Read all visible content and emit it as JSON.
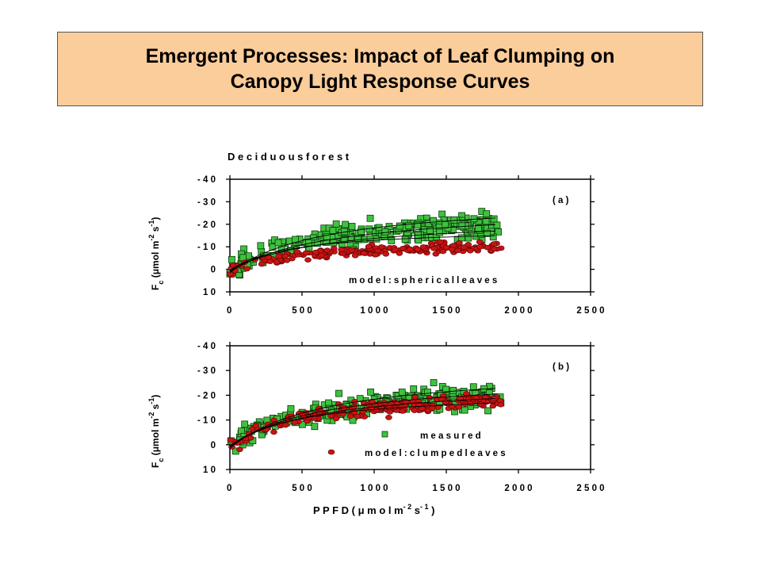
{
  "slide": {
    "title_line1": "Emergent Processes: Impact of Leaf Clumping on",
    "title_line2": "Canopy Light Response Curves"
  },
  "figure": {
    "heading": "D e c i d u o u s   f o r e s t",
    "xlabel_text": "P P F D     ( μ m o l  m",
    "xlabel_sup1": "- 2",
    "xlabel_mid": "  s",
    "xlabel_sup2": "- 1",
    "xlabel_end": " )"
  },
  "colors": {
    "measured_fill": "#3fc23f",
    "model_fill": "#c81414",
    "title_bg": "#fbcd9a"
  },
  "chart_data": [
    {
      "type": "scatter",
      "panel_label": "( a )",
      "annotation": "m o d e l :  s p h e r i c a l  l e a v e s",
      "ylabel": "F",
      "ylabel_sub": "c",
      "ylabel_units": "(μmol m",
      "ylabel_sup1": "-2",
      "ylabel_mid": " s",
      "ylabel_sup2": "-1",
      "ylabel_end": ")",
      "xlim": [
        0,
        2500
      ],
      "ylim": [
        10,
        -40
      ],
      "xticks": [
        0,
        500,
        1000,
        1500,
        2000,
        2500
      ],
      "xtick_labels": [
        "0",
        "5 0 0",
        "1 0 0 0",
        "1 5 0 0",
        "2 0 0 0",
        "2 5 0 0"
      ],
      "yticks": [
        -40,
        -30,
        -20,
        -10,
        0,
        10
      ],
      "ytick_labels": [
        "- 4 0",
        "- 3 0",
        "- 2 0",
        "- 1 0",
        "0",
        "1 0"
      ],
      "series": [
        {
          "marker": "square",
          "color": "#3fc23f",
          "model": "a",
          "scale": 0.95,
          "noise": 3.4,
          "n": 240
        },
        {
          "marker": "circle",
          "color": "#c81414",
          "model": "b",
          "scale": 0.7,
          "noise": 1.6,
          "n": 200
        }
      ],
      "curves": [
        {
          "a": 0.05,
          "pmax": 33,
          "r": -1.5,
          "xmax": 1850
        },
        {
          "a": 0.04,
          "pmax": 29,
          "r": -1.0,
          "xmax": 1850
        },
        {
          "a": 0.035,
          "pmax": 24,
          "r": -0.5,
          "xmax": 1850
        },
        {
          "a": 0.045,
          "pmax": 19,
          "r": -0.5,
          "xmax": 1850
        }
      ],
      "model_a": {
        "a": 0.05,
        "pmax": 30,
        "r": -1.5
      },
      "model_b": {
        "a": 0.04,
        "pmax": 18,
        "r": -0.5
      }
    },
    {
      "type": "scatter",
      "panel_label": "( b )",
      "legend": [
        {
          "label": "m e a s u r e d",
          "marker": "square",
          "color": "#3fc23f"
        },
        {
          "label": "m o d e l :  c l u m p e d  l e a v e s",
          "marker": "circle",
          "color": "#c81414"
        }
      ],
      "ylabel": "F",
      "ylabel_sub": "c",
      "ylabel_units": "(μmol m",
      "ylabel_sup1": "-2",
      "ylabel_mid": " s",
      "ylabel_sup2": "-1",
      "ylabel_end": ")",
      "xlim": [
        0,
        2500
      ],
      "ylim": [
        10,
        -40
      ],
      "xticks": [
        0,
        500,
        1000,
        1500,
        2000,
        2500
      ],
      "xtick_labels": [
        "0",
        "5 0 0",
        "1 0 0 0",
        "1 5 0 0",
        "2 0 0 0",
        "2 5 0 0"
      ],
      "yticks": [
        -40,
        -30,
        -20,
        -10,
        0,
        10
      ],
      "ytick_labels": [
        "- 4 0",
        "- 3 0",
        "- 2 0",
        "- 1 0",
        "0",
        "1 0"
      ],
      "series": [
        {
          "marker": "square",
          "color": "#3fc23f",
          "model": "a",
          "scale": 0.95,
          "noise": 3.4,
          "n": 240
        },
        {
          "marker": "circle",
          "color": "#c81414",
          "model": "b",
          "scale": 0.95,
          "noise": 2.2,
          "n": 200
        }
      ],
      "curves": [
        {
          "a": 0.05,
          "pmax": 33,
          "r": -1.5,
          "xmax": 1850
        },
        {
          "a": 0.045,
          "pmax": 29,
          "r": -1.0,
          "xmax": 1850
        },
        {
          "a": 0.04,
          "pmax": 26,
          "r": -0.5,
          "xmax": 1850
        },
        {
          "a": 0.045,
          "pmax": 22,
          "r": -0.5,
          "xmax": 1850
        }
      ],
      "model_a": {
        "a": 0.05,
        "pmax": 30,
        "r": -1.5
      },
      "model_b": {
        "a": 0.045,
        "pmax": 25,
        "r": -0.5
      }
    }
  ]
}
